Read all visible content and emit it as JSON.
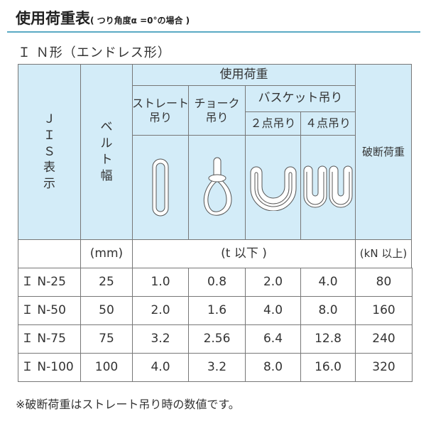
{
  "title": {
    "main": "使用荷重表",
    "note": "( つり角度α =0°の場合 )"
  },
  "subtitle": "Ｉ Ｎ形（エンドレス形）",
  "header": {
    "jis": "Ｊ\nＩ\nＳ\n表\n示",
    "belt": "ベ\nル\nト\n幅",
    "load": "使用荷重",
    "straight": "ストレート\n吊り",
    "choke": "チョーク\n吊り",
    "basket": "バスケット吊り",
    "two_point": "２点吊り",
    "four_point": "４点吊り",
    "break": "破断荷重"
  },
  "units": {
    "belt": "(mm)",
    "load": "(t 以下 )",
    "break": "(kN 以上)"
  },
  "colors": {
    "header_bg": "#d3ecf8",
    "rule": "#5aaac4"
  },
  "icons": [
    "straight-sling-icon",
    "choke-sling-icon",
    "basket-2point-icon",
    "basket-4point-icon"
  ],
  "rows": [
    [
      "Ｉ N-25",
      "25",
      "1.0",
      "0.8",
      "2.0",
      "4.0",
      "80"
    ],
    [
      "Ｉ N-50",
      "50",
      "2.0",
      "1.6",
      "4.0",
      "8.0",
      "160"
    ],
    [
      "Ｉ N-75",
      "75",
      "3.2",
      "2.56",
      "6.4",
      "12.8",
      "240"
    ],
    [
      "Ｉ N-100",
      "100",
      "4.0",
      "3.2",
      "8.0",
      "16.0",
      "320"
    ]
  ],
  "footnote": "※破断荷重はストレート吊り時の数値です。"
}
